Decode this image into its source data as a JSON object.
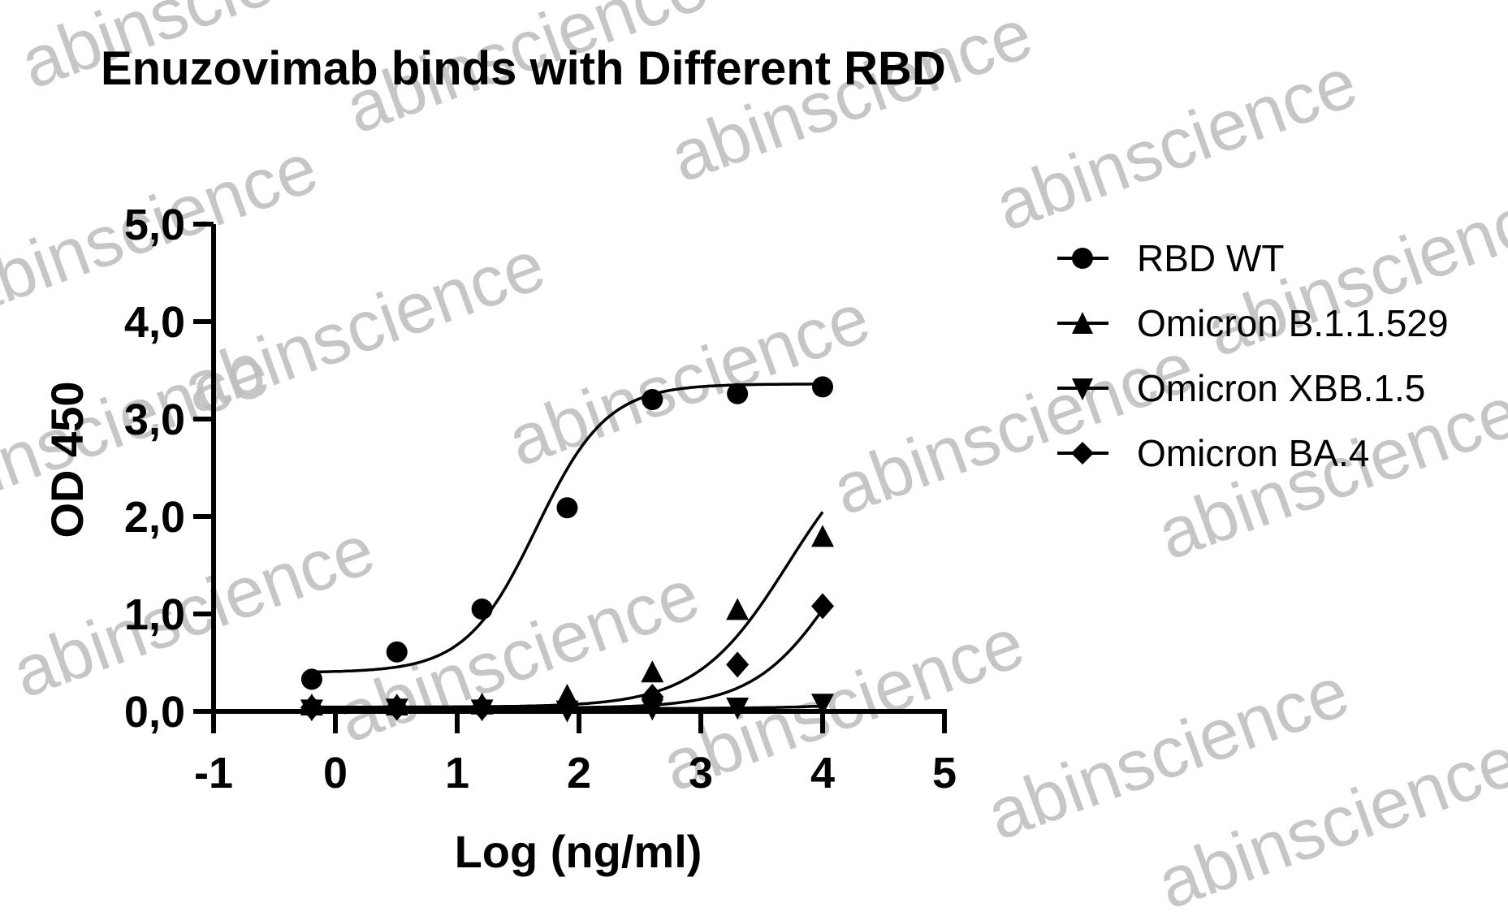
{
  "chart_data": {
    "type": "scatter",
    "title": "Enuzovimab binds with Different RBD",
    "xlabel": "Log (ng/ml)",
    "ylabel": "OD 450",
    "xlim": [
      -1,
      5
    ],
    "ylim": [
      0,
      5
    ],
    "x_ticks": [
      "-1",
      "0",
      "1",
      "2",
      "3",
      "4",
      "5"
    ],
    "y_ticks": [
      "0,0",
      "1,0",
      "2,0",
      "3,0",
      "4,0",
      "5,0"
    ],
    "grid": false,
    "legend_position": "right",
    "x": [
      -0.194,
      0.505,
      1.204,
      1.903,
      2.602,
      3.301,
      4.0
    ],
    "series": [
      {
        "name": "RBD WT",
        "marker": "circle",
        "values": [
          0.33,
          0.61,
          1.05,
          2.09,
          3.2,
          3.26,
          3.33
        ],
        "fit": {
          "bottom": 0.4,
          "top": 3.36,
          "logEC50": 1.65,
          "hill": 1.5
        }
      },
      {
        "name": "Omicron B.1.1.529",
        "marker": "triangle-up",
        "values": [
          0.05,
          0.05,
          0.06,
          0.15,
          0.39,
          1.03,
          1.78
        ],
        "fit": {
          "bottom": 0.045,
          "top": 3.0,
          "logEC50": 3.72,
          "hill": 1.15
        }
      },
      {
        "name": "Omicron XBB.1.5",
        "marker": "triangle-down",
        "values": [
          0.03,
          0.04,
          0.03,
          0.02,
          0.04,
          0.05,
          0.09
        ],
        "fit": {
          "bottom": 0.03,
          "top": 0.3,
          "logEC50": 5.0,
          "hill": 1.0
        }
      },
      {
        "name": "Omicron BA.4",
        "marker": "diamond",
        "values": [
          0.04,
          0.04,
          0.04,
          0.06,
          0.15,
          0.48,
          1.08
        ],
        "fit": {
          "bottom": 0.035,
          "top": 2.6,
          "logEC50": 4.15,
          "hill": 1.25
        }
      }
    ]
  },
  "watermark": "abinscience",
  "colors": {
    "ink": "#000000",
    "watermark": "#bdbdbd",
    "background": "#ffffff"
  }
}
